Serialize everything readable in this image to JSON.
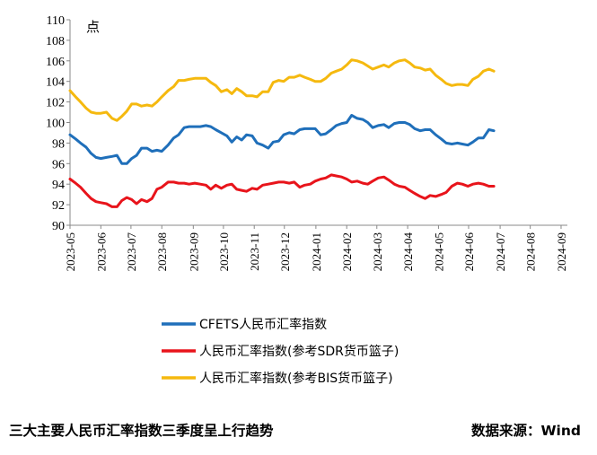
{
  "chart_data": {
    "type": "line",
    "unit_label": "点",
    "ylim": [
      90,
      110
    ],
    "yticks": [
      90,
      92,
      94,
      96,
      98,
      100,
      102,
      104,
      106,
      108,
      110
    ],
    "xlim": [
      0,
      71
    ],
    "x_ticks": [
      {
        "label": "2023-05",
        "pos": 0
      },
      {
        "label": "2023-06",
        "pos": 4.4
      },
      {
        "label": "2023-07",
        "pos": 8.7
      },
      {
        "label": "2023-08",
        "pos": 13.1
      },
      {
        "label": "2023-09",
        "pos": 17.6
      },
      {
        "label": "2023-10",
        "pos": 21.9
      },
      {
        "label": "2023-11",
        "pos": 26.3
      },
      {
        "label": "2023-12",
        "pos": 30.6
      },
      {
        "label": "2024-01",
        "pos": 35.1
      },
      {
        "label": "2024-02",
        "pos": 39.5
      },
      {
        "label": "2024-03",
        "pos": 43.8
      },
      {
        "label": "2024-04",
        "pos": 48.2
      },
      {
        "label": "2024-05",
        "pos": 52.6
      },
      {
        "label": "2024-06",
        "pos": 56.9
      },
      {
        "label": "2024-07",
        "pos": 61.4
      },
      {
        "label": "2024-08",
        "pos": 65.7
      },
      {
        "label": "2024-09",
        "pos": 70.1
      }
    ],
    "series": [
      {
        "name": "CFETS人民币汇率指数",
        "color": "#1f6fba",
        "values": [
          [
            0,
            98.8
          ],
          [
            0.8,
            98.4
          ],
          [
            1.5,
            98.0
          ],
          [
            2.3,
            97.6
          ],
          [
            3.0,
            97.0
          ],
          [
            3.7,
            96.6
          ],
          [
            4.4,
            96.5
          ],
          [
            5.2,
            96.6
          ],
          [
            6.0,
            96.7
          ],
          [
            6.7,
            96.8
          ],
          [
            7.4,
            96.0
          ],
          [
            8.1,
            96.0
          ],
          [
            8.8,
            96.5
          ],
          [
            9.5,
            96.8
          ],
          [
            10.2,
            97.5
          ],
          [
            11.0,
            97.5
          ],
          [
            11.7,
            97.2
          ],
          [
            12.4,
            97.3
          ],
          [
            13.1,
            97.2
          ],
          [
            14.0,
            97.8
          ],
          [
            14.8,
            98.5
          ],
          [
            15.5,
            98.8
          ],
          [
            16.3,
            99.5
          ],
          [
            17.0,
            99.6
          ],
          [
            17.8,
            99.6
          ],
          [
            18.6,
            99.6
          ],
          [
            19.4,
            99.7
          ],
          [
            20.1,
            99.6
          ],
          [
            20.8,
            99.3
          ],
          [
            21.6,
            99.0
          ],
          [
            22.4,
            98.7
          ],
          [
            23.1,
            98.1
          ],
          [
            23.8,
            98.6
          ],
          [
            24.5,
            98.3
          ],
          [
            25.2,
            98.8
          ],
          [
            26.0,
            98.7
          ],
          [
            26.7,
            98.0
          ],
          [
            27.5,
            97.8
          ],
          [
            28.3,
            97.5
          ],
          [
            29.0,
            98.1
          ],
          [
            29.8,
            98.2
          ],
          [
            30.5,
            98.8
          ],
          [
            31.3,
            99.0
          ],
          [
            32.0,
            98.9
          ],
          [
            32.8,
            99.3
          ],
          [
            33.5,
            99.4
          ],
          [
            34.3,
            99.4
          ],
          [
            35.0,
            99.4
          ],
          [
            35.8,
            98.8
          ],
          [
            36.5,
            98.9
          ],
          [
            37.3,
            99.3
          ],
          [
            38.0,
            99.7
          ],
          [
            38.8,
            99.9
          ],
          [
            39.5,
            100.0
          ],
          [
            40.2,
            100.7
          ],
          [
            41.0,
            100.4
          ],
          [
            41.8,
            100.3
          ],
          [
            42.5,
            100.0
          ],
          [
            43.2,
            99.5
          ],
          [
            44.0,
            99.7
          ],
          [
            44.8,
            99.8
          ],
          [
            45.5,
            99.5
          ],
          [
            46.3,
            99.9
          ],
          [
            47.0,
            100.0
          ],
          [
            47.8,
            100.0
          ],
          [
            48.5,
            99.8
          ],
          [
            49.2,
            99.4
          ],
          [
            50.0,
            99.2
          ],
          [
            50.7,
            99.3
          ],
          [
            51.4,
            99.3
          ],
          [
            52.2,
            98.8
          ],
          [
            53.0,
            98.4
          ],
          [
            53.7,
            98.0
          ],
          [
            54.5,
            97.9
          ],
          [
            55.3,
            98.0
          ],
          [
            56.0,
            97.9
          ],
          [
            56.8,
            97.8
          ],
          [
            57.5,
            98.1
          ],
          [
            58.3,
            98.5
          ],
          [
            59.0,
            98.5
          ],
          [
            59.8,
            99.3
          ],
          [
            60.5,
            99.2
          ]
        ]
      },
      {
        "name": "人民币汇率指数(参考SDR货币篮子)",
        "color": "#e8141b",
        "values": [
          [
            0,
            94.5
          ],
          [
            0.8,
            94.1
          ],
          [
            1.5,
            93.7
          ],
          [
            2.3,
            93.1
          ],
          [
            3.0,
            92.6
          ],
          [
            3.7,
            92.3
          ],
          [
            4.4,
            92.2
          ],
          [
            5.2,
            92.1
          ],
          [
            6.0,
            91.8
          ],
          [
            6.7,
            91.8
          ],
          [
            7.4,
            92.4
          ],
          [
            8.1,
            92.7
          ],
          [
            8.8,
            92.5
          ],
          [
            9.5,
            92.1
          ],
          [
            10.2,
            92.5
          ],
          [
            11.0,
            92.3
          ],
          [
            11.7,
            92.6
          ],
          [
            12.4,
            93.5
          ],
          [
            13.1,
            93.7
          ],
          [
            14.0,
            94.2
          ],
          [
            14.8,
            94.2
          ],
          [
            15.5,
            94.1
          ],
          [
            16.3,
            94.1
          ],
          [
            17.0,
            94.0
          ],
          [
            17.8,
            94.1
          ],
          [
            18.6,
            94.0
          ],
          [
            19.4,
            93.9
          ],
          [
            20.1,
            93.5
          ],
          [
            20.8,
            93.9
          ],
          [
            21.6,
            93.6
          ],
          [
            22.4,
            93.9
          ],
          [
            23.1,
            94.0
          ],
          [
            23.8,
            93.5
          ],
          [
            24.5,
            93.4
          ],
          [
            25.2,
            93.3
          ],
          [
            26.0,
            93.6
          ],
          [
            26.7,
            93.5
          ],
          [
            27.5,
            93.9
          ],
          [
            28.3,
            94.0
          ],
          [
            29.0,
            94.1
          ],
          [
            29.8,
            94.2
          ],
          [
            30.5,
            94.2
          ],
          [
            31.3,
            94.1
          ],
          [
            32.0,
            94.2
          ],
          [
            32.8,
            93.7
          ],
          [
            33.5,
            93.9
          ],
          [
            34.3,
            94.0
          ],
          [
            35.0,
            94.3
          ],
          [
            35.8,
            94.5
          ],
          [
            36.5,
            94.6
          ],
          [
            37.3,
            94.9
          ],
          [
            38.0,
            94.8
          ],
          [
            38.8,
            94.7
          ],
          [
            39.5,
            94.5
          ],
          [
            40.2,
            94.2
          ],
          [
            41.0,
            94.3
          ],
          [
            41.8,
            94.1
          ],
          [
            42.5,
            94.0
          ],
          [
            43.2,
            94.3
          ],
          [
            44.0,
            94.6
          ],
          [
            44.8,
            94.7
          ],
          [
            45.5,
            94.4
          ],
          [
            46.3,
            94.0
          ],
          [
            47.0,
            93.8
          ],
          [
            47.8,
            93.7
          ],
          [
            48.5,
            93.4
          ],
          [
            49.2,
            93.1
          ],
          [
            50.0,
            92.8
          ],
          [
            50.7,
            92.6
          ],
          [
            51.4,
            92.9
          ],
          [
            52.2,
            92.8
          ],
          [
            53.0,
            93.0
          ],
          [
            53.7,
            93.2
          ],
          [
            54.5,
            93.8
          ],
          [
            55.3,
            94.1
          ],
          [
            56.0,
            94.0
          ],
          [
            56.8,
            93.8
          ],
          [
            57.5,
            94.0
          ],
          [
            58.3,
            94.1
          ],
          [
            59.0,
            94.0
          ],
          [
            59.8,
            93.8
          ],
          [
            60.5,
            93.8
          ]
        ]
      },
      {
        "name": "人民币汇率指数(参考BIS货币篮子)",
        "color": "#f5b90f",
        "values": [
          [
            0,
            103.1
          ],
          [
            0.8,
            102.5
          ],
          [
            1.5,
            102.0
          ],
          [
            2.3,
            101.4
          ],
          [
            3.0,
            101.0
          ],
          [
            3.7,
            100.9
          ],
          [
            4.4,
            100.9
          ],
          [
            5.2,
            101.0
          ],
          [
            6.0,
            100.4
          ],
          [
            6.7,
            100.2
          ],
          [
            7.4,
            100.6
          ],
          [
            8.1,
            101.1
          ],
          [
            8.8,
            101.8
          ],
          [
            9.5,
            101.8
          ],
          [
            10.2,
            101.6
          ],
          [
            11.0,
            101.7
          ],
          [
            11.7,
            101.6
          ],
          [
            12.4,
            102.0
          ],
          [
            13.1,
            102.5
          ],
          [
            14.0,
            103.1
          ],
          [
            14.8,
            103.5
          ],
          [
            15.5,
            104.1
          ],
          [
            16.3,
            104.1
          ],
          [
            17.0,
            104.2
          ],
          [
            17.8,
            104.3
          ],
          [
            18.6,
            104.3
          ],
          [
            19.4,
            104.3
          ],
          [
            20.1,
            103.9
          ],
          [
            20.8,
            103.6
          ],
          [
            21.6,
            103.0
          ],
          [
            22.4,
            103.2
          ],
          [
            23.1,
            102.8
          ],
          [
            23.8,
            103.3
          ],
          [
            24.5,
            103.0
          ],
          [
            25.2,
            102.6
          ],
          [
            26.0,
            102.6
          ],
          [
            26.7,
            102.5
          ],
          [
            27.5,
            103.0
          ],
          [
            28.3,
            103.0
          ],
          [
            29.0,
            103.9
          ],
          [
            29.8,
            104.1
          ],
          [
            30.5,
            104.0
          ],
          [
            31.3,
            104.4
          ],
          [
            32.0,
            104.4
          ],
          [
            32.8,
            104.6
          ],
          [
            33.5,
            104.4
          ],
          [
            34.3,
            104.2
          ],
          [
            35.0,
            104.0
          ],
          [
            35.8,
            104.0
          ],
          [
            36.5,
            104.3
          ],
          [
            37.3,
            104.8
          ],
          [
            38.0,
            105.0
          ],
          [
            38.8,
            105.2
          ],
          [
            39.5,
            105.6
          ],
          [
            40.2,
            106.1
          ],
          [
            41.0,
            106.0
          ],
          [
            41.8,
            105.8
          ],
          [
            42.5,
            105.5
          ],
          [
            43.2,
            105.2
          ],
          [
            44.0,
            105.4
          ],
          [
            44.8,
            105.6
          ],
          [
            45.5,
            105.4
          ],
          [
            46.3,
            105.8
          ],
          [
            47.0,
            106.0
          ],
          [
            47.8,
            106.1
          ],
          [
            48.5,
            105.8
          ],
          [
            49.2,
            105.4
          ],
          [
            50.0,
            105.3
          ],
          [
            50.7,
            105.1
          ],
          [
            51.4,
            105.2
          ],
          [
            52.2,
            104.6
          ],
          [
            53.0,
            104.2
          ],
          [
            53.7,
            103.8
          ],
          [
            54.5,
            103.6
          ],
          [
            55.3,
            103.7
          ],
          [
            56.0,
            103.7
          ],
          [
            56.8,
            103.6
          ],
          [
            57.5,
            104.2
          ],
          [
            58.3,
            104.5
          ],
          [
            59.0,
            105.0
          ],
          [
            59.8,
            105.2
          ],
          [
            60.5,
            105.0
          ]
        ]
      }
    ]
  },
  "caption": {
    "title": "三大主要人民币汇率指数三季度呈上行趋势",
    "source": "数据来源：Wind"
  }
}
